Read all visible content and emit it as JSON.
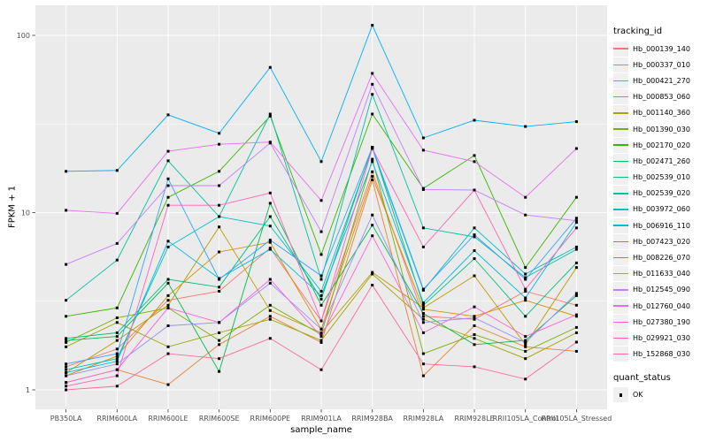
{
  "chart_data": {
    "type": "line",
    "title": "",
    "xlabel": "sample_name",
    "ylabel": "FPKM + 1",
    "y_scale": "log10",
    "y_ticks": [
      1,
      10,
      100
    ],
    "y_minor_ticks": [
      3.1623,
      31.623
    ],
    "ylim": [
      0.78,
      148
    ],
    "grid": "on",
    "legend_position": "right",
    "legend_title": "tracking_id",
    "legend2_title": "quant_status",
    "legend2_items": [
      {
        "label": "OK",
        "marker": "black-square"
      }
    ],
    "marker_color": "#000000",
    "categories": [
      "PB350LA",
      "RRIM600LA",
      "RRIM600LE",
      "RRIM600SE",
      "RRIM600PE",
      "RRIM901LA",
      "RRIM928BA",
      "RRIM928LA",
      "RRIM928LE",
      "RRII105LA_Control",
      "RRII105LA_Stressed"
    ],
    "series": [
      {
        "name": "Hb_000139_140",
        "color": "#F8766D",
        "values": [
          1.35,
          1.7,
          3.2,
          3.6,
          6.3,
          2.45,
          17,
          2.6,
          2.5,
          3.6,
          3.0
        ]
      },
      {
        "name": "Hb_000337_010",
        "color": "#EA8331",
        "values": [
          1.1,
          1.3,
          1.07,
          1.8,
          2.6,
          1.85,
          15.3,
          1.2,
          2.3,
          1.75,
          1.65
        ]
      },
      {
        "name": "Hb_000421_270",
        "color": "#D89000",
        "values": [
          1.2,
          1.55,
          3.4,
          6.0,
          6.8,
          2.2,
          16,
          2.85,
          2.6,
          3.2,
          2.6
        ]
      },
      {
        "name": "Hb_000853_060",
        "color": "#C09B00",
        "values": [
          1.25,
          1.9,
          3.0,
          8.3,
          2.8,
          2.1,
          4.6,
          2.9,
          4.4,
          1.8,
          4.9
        ]
      },
      {
        "name": "Hb_001140_360",
        "color": "#A3A500",
        "values": [
          1.75,
          2.4,
          1.75,
          2.1,
          2.5,
          1.9,
          4.5,
          2.5,
          1.95,
          1.5,
          2.1
        ]
      },
      {
        "name": "Hb_001390_030",
        "color": "#7CAE00",
        "values": [
          1.85,
          2.55,
          2.9,
          1.9,
          3.0,
          2.05,
          20,
          1.6,
          2.05,
          1.65,
          2.25
        ]
      },
      {
        "name": "Hb_002170_020",
        "color": "#39B600",
        "values": [
          2.6,
          2.9,
          12.2,
          17.1,
          35,
          5.8,
          36,
          13.7,
          21,
          4.9,
          12.2
        ]
      },
      {
        "name": "Hb_002471_260",
        "color": "#00BB4E",
        "values": [
          1.9,
          2.0,
          4.0,
          1.27,
          11.3,
          3.0,
          8.5,
          2.7,
          1.8,
          1.9,
          3.4
        ]
      },
      {
        "name": "Hb_002539_010",
        "color": "#00BF7D",
        "values": [
          1.95,
          2.1,
          4.2,
          3.8,
          9.5,
          3.25,
          23.4,
          3.0,
          5.5,
          2.6,
          5.2
        ]
      },
      {
        "name": "Hb_002539_020",
        "color": "#00C1A3",
        "values": [
          3.2,
          5.4,
          19.6,
          9.5,
          36,
          4.2,
          46.5,
          8.2,
          7.3,
          4.3,
          6.2
        ]
      },
      {
        "name": "Hb_003972_060",
        "color": "#00BFC4",
        "values": [
          1.3,
          1.5,
          6.4,
          9.5,
          8.4,
          3.6,
          23,
          3.65,
          8.2,
          4.5,
          6.4
        ]
      },
      {
        "name": "Hb_006916_110",
        "color": "#00BAE0",
        "values": [
          1.25,
          1.45,
          6.9,
          4.25,
          6.2,
          3.4,
          19.4,
          3.1,
          6.1,
          3.3,
          8.8
        ]
      },
      {
        "name": "Hb_007423_020",
        "color": "#00B0F6",
        "values": [
          17.1,
          17.3,
          35.6,
          28,
          66,
          19.4,
          114,
          26.4,
          33.2,
          30.6,
          32.6
        ]
      },
      {
        "name": "Hb_008226_070",
        "color": "#35A2FF",
        "values": [
          1.4,
          1.6,
          15.5,
          4.2,
          7.0,
          4.4,
          23.4,
          3.7,
          7.5,
          4.2,
          9.3
        ]
      },
      {
        "name": "Hb_011633_040",
        "color": "#9590FF",
        "values": [
          1.2,
          1.4,
          2.3,
          2.4,
          4.0,
          2.2,
          9.7,
          2.4,
          2.55,
          1.85,
          3.5
        ]
      },
      {
        "name": "Hb_012545_090",
        "color": "#C77CFF",
        "values": [
          5.1,
          6.7,
          14.2,
          14.2,
          24.7,
          7.8,
          53,
          13.5,
          13.4,
          9.7,
          9.0
        ]
      },
      {
        "name": "Hb_012760_040",
        "color": "#E76BF3",
        "values": [
          10.3,
          9.9,
          22.2,
          24.3,
          25,
          11.7,
          61,
          22.5,
          19.4,
          12.2,
          23
        ]
      },
      {
        "name": "Hb_027380_190",
        "color": "#FA62DB",
        "values": [
          1.1,
          1.3,
          2.9,
          2.4,
          4.2,
          2.0,
          7.4,
          2.1,
          2.94,
          2.0,
          2.65
        ]
      },
      {
        "name": "Hb_029921_030",
        "color": "#FF62BC",
        "values": [
          1.05,
          1.2,
          11,
          11,
          12.9,
          2.45,
          23,
          6.4,
          13.4,
          3.7,
          8.2
        ]
      },
      {
        "name": "Hb_152868_030",
        "color": "#FF6A98",
        "values": [
          1.0,
          1.05,
          1.6,
          1.5,
          1.95,
          1.3,
          3.9,
          1.4,
          1.35,
          1.15,
          1.86
        ]
      }
    ]
  },
  "style": {
    "panel_bg": "#EBEBEB",
    "grid_color": "#FFFFFF",
    "tick_mark_color": "#333333",
    "tick_text_color": "#4D4D4D",
    "axis_title_color": "#000000",
    "legend_key_bg": "#F0F0F0"
  }
}
